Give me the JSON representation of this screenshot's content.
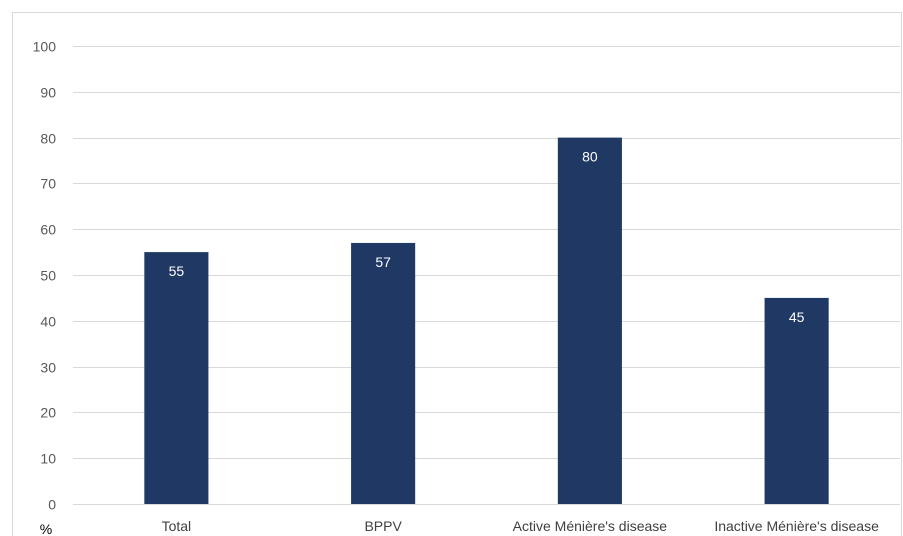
{
  "chart_data": {
    "type": "bar",
    "title": "",
    "xlabel": "",
    "ylabel": "",
    "y_unit_label": "%",
    "categories": [
      "Total",
      "BPPV",
      "Active Ménière's disease",
      "Inactive Ménière's disease"
    ],
    "values": [
      55,
      57,
      80,
      45
    ],
    "data_labels": [
      "55",
      "57",
      "80",
      "45"
    ],
    "ylim": [
      0,
      100
    ],
    "yticks": [
      0,
      10,
      20,
      30,
      40,
      50,
      60,
      70,
      80,
      90,
      100
    ],
    "grid": true,
    "legend": "none",
    "bar_color": "#1f3864"
  }
}
